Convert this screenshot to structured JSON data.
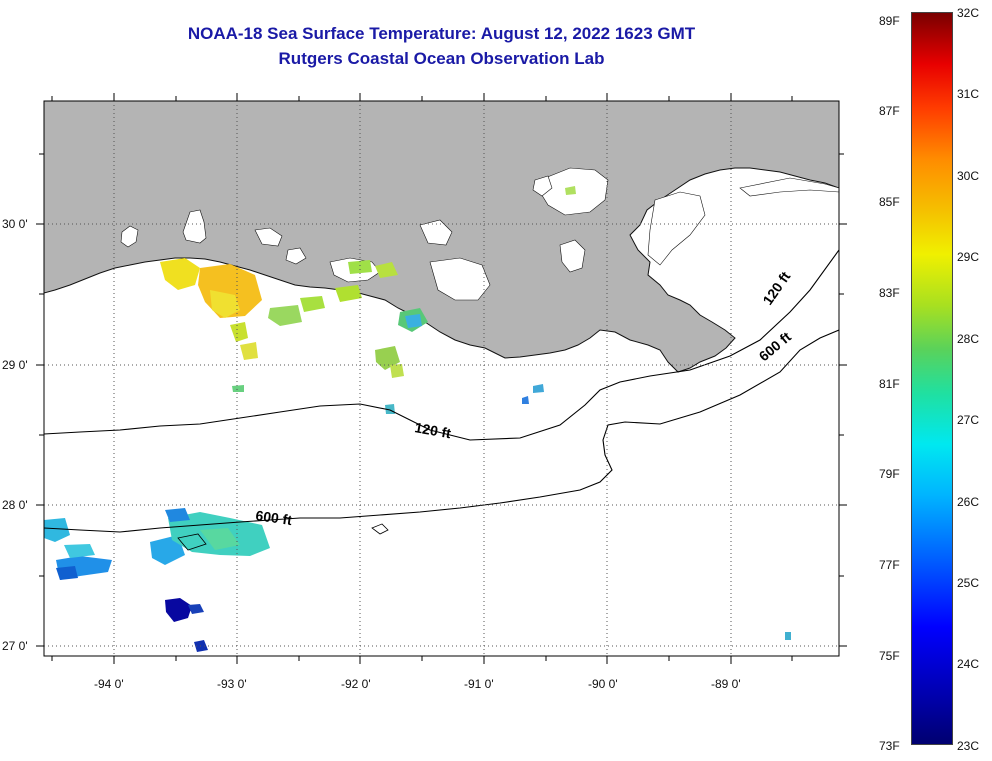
{
  "header": {
    "title_line1": "NOAA-18 Sea Surface Temperature:  August 12, 2022 1623 GMT",
    "title_line2": "Rutgers Coastal Ocean Observation Lab"
  },
  "map": {
    "lon_labels": [
      "-94 0'",
      "-93 0'",
      "-92 0'",
      "-91 0'",
      "-90 0'",
      "-89 0'"
    ],
    "lat_labels": [
      "30 0'",
      "29 0'",
      "28 0'",
      "27 0'"
    ],
    "contours": [
      {
        "label": "120 ft",
        "depth_ft": 120
      },
      {
        "label": "600 ft",
        "depth_ft": 600
      },
      {
        "label": "120 ft",
        "depth_ft": 120
      },
      {
        "label": "600 ft",
        "depth_ft": 600
      }
    ],
    "colors": {
      "land": "#b4b4b4",
      "ocean": "#ffffff",
      "title": "#1a1aa6"
    }
  },
  "colorbar": {
    "fahrenheit_labels": [
      "89F",
      "87F",
      "85F",
      "83F",
      "81F",
      "79F",
      "77F",
      "75F",
      "73F"
    ],
    "celsius_labels": [
      "32C",
      "31C",
      "30C",
      "29C",
      "28C",
      "27C",
      "26C",
      "25C",
      "24C",
      "23C"
    ]
  }
}
